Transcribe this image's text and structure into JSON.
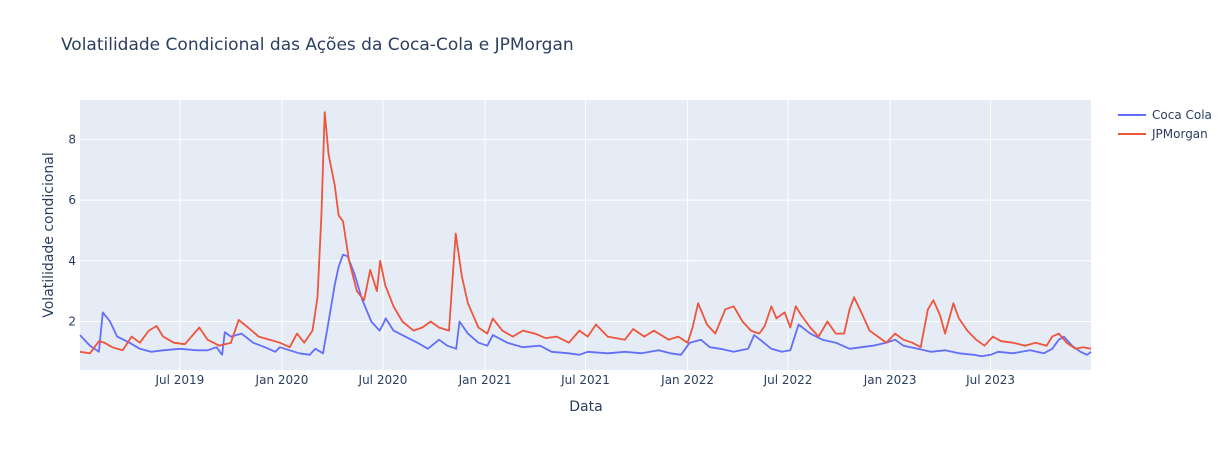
{
  "chart_data": {
    "type": "line",
    "title": "Volatilidade Condicional das Ações da Coca-Cola e JPMorgan",
    "xlabel": "Data",
    "ylabel": "Volatilidade condicional",
    "xlim": [
      "2019-01-02",
      "2023-12-29"
    ],
    "ylim": [
      0.4,
      9.3
    ],
    "x_ticks": [
      {
        "date": "2019-07-01",
        "label": "Jul 2019"
      },
      {
        "date": "2020-01-01",
        "label": "Jan 2020"
      },
      {
        "date": "2020-07-01",
        "label": "Jul 2020"
      },
      {
        "date": "2021-01-01",
        "label": "Jan 2021"
      },
      {
        "date": "2021-07-01",
        "label": "Jul 2021"
      },
      {
        "date": "2022-01-01",
        "label": "Jan 2022"
      },
      {
        "date": "2022-07-01",
        "label": "Jul 2022"
      },
      {
        "date": "2023-01-01",
        "label": "Jan 2023"
      },
      {
        "date": "2023-07-01",
        "label": "Jul 2023"
      }
    ],
    "y_ticks": [
      2,
      4,
      6,
      8
    ],
    "grid": true,
    "legend_position": "top-right",
    "series": [
      {
        "name": "Coca Cola",
        "color": "#636efa",
        "points": [
          [
            "2019-01-02",
            1.55
          ],
          [
            "2019-01-20",
            1.2
          ],
          [
            "2019-02-05",
            1.0
          ],
          [
            "2019-02-12",
            2.3
          ],
          [
            "2019-02-25",
            2.0
          ],
          [
            "2019-03-10",
            1.5
          ],
          [
            "2019-04-01",
            1.3
          ],
          [
            "2019-04-20",
            1.1
          ],
          [
            "2019-05-10",
            1.0
          ],
          [
            "2019-06-01",
            1.05
          ],
          [
            "2019-07-01",
            1.1
          ],
          [
            "2019-08-01",
            1.05
          ],
          [
            "2019-08-20",
            1.05
          ],
          [
            "2019-09-05",
            1.15
          ],
          [
            "2019-09-15",
            0.9
          ],
          [
            "2019-09-20",
            1.65
          ],
          [
            "2019-10-01",
            1.5
          ],
          [
            "2019-10-20",
            1.6
          ],
          [
            "2019-11-10",
            1.3
          ],
          [
            "2019-12-01",
            1.15
          ],
          [
            "2019-12-20",
            1.0
          ],
          [
            "2019-12-28",
            1.15
          ],
          [
            "2020-01-15",
            1.05
          ],
          [
            "2020-02-01",
            0.95
          ],
          [
            "2020-02-20",
            0.9
          ],
          [
            "2020-03-01",
            1.1
          ],
          [
            "2020-03-15",
            0.95
          ],
          [
            "2020-03-25",
            2.0
          ],
          [
            "2020-04-05",
            3.2
          ],
          [
            "2020-04-12",
            3.8
          ],
          [
            "2020-04-20",
            4.2
          ],
          [
            "2020-04-28",
            4.15
          ],
          [
            "2020-05-10",
            3.6
          ],
          [
            "2020-05-25",
            2.7
          ],
          [
            "2020-06-10",
            2.0
          ],
          [
            "2020-06-25",
            1.7
          ],
          [
            "2020-07-01",
            1.9
          ],
          [
            "2020-07-06",
            2.1
          ],
          [
            "2020-07-20",
            1.7
          ],
          [
            "2020-08-10",
            1.5
          ],
          [
            "2020-09-01",
            1.3
          ],
          [
            "2020-09-20",
            1.1
          ],
          [
            "2020-10-10",
            1.4
          ],
          [
            "2020-10-25",
            1.2
          ],
          [
            "2020-11-10",
            1.1
          ],
          [
            "2020-11-16",
            2.0
          ],
          [
            "2020-12-01",
            1.6
          ],
          [
            "2020-12-20",
            1.3
          ],
          [
            "2021-01-05",
            1.2
          ],
          [
            "2021-01-15",
            1.55
          ],
          [
            "2021-02-10",
            1.3
          ],
          [
            "2021-03-10",
            1.15
          ],
          [
            "2021-04-10",
            1.2
          ],
          [
            "2021-05-01",
            1.0
          ],
          [
            "2021-06-01",
            0.95
          ],
          [
            "2021-06-20",
            0.9
          ],
          [
            "2021-07-05",
            1.0
          ],
          [
            "2021-08-10",
            0.95
          ],
          [
            "2021-09-10",
            1.0
          ],
          [
            "2021-10-10",
            0.95
          ],
          [
            "2021-11-10",
            1.05
          ],
          [
            "2021-12-01",
            0.95
          ],
          [
            "2021-12-20",
            0.9
          ],
          [
            "2022-01-05",
            1.3
          ],
          [
            "2022-01-25",
            1.4
          ],
          [
            "2022-02-10",
            1.15
          ],
          [
            "2022-03-01",
            1.1
          ],
          [
            "2022-03-25",
            1.0
          ],
          [
            "2022-04-20",
            1.1
          ],
          [
            "2022-05-01",
            1.55
          ],
          [
            "2022-05-15",
            1.35
          ],
          [
            "2022-06-01",
            1.1
          ],
          [
            "2022-06-20",
            1.0
          ],
          [
            "2022-07-05",
            1.05
          ],
          [
            "2022-07-20",
            1.9
          ],
          [
            "2022-08-10",
            1.6
          ],
          [
            "2022-09-01",
            1.4
          ],
          [
            "2022-09-25",
            1.3
          ],
          [
            "2022-10-20",
            1.1
          ],
          [
            "2022-11-10",
            1.15
          ],
          [
            "2022-12-01",
            1.2
          ],
          [
            "2022-12-25",
            1.3
          ],
          [
            "2023-01-10",
            1.4
          ],
          [
            "2023-01-25",
            1.2
          ],
          [
            "2023-02-20",
            1.1
          ],
          [
            "2023-03-15",
            1.0
          ],
          [
            "2023-04-10",
            1.05
          ],
          [
            "2023-05-05",
            0.95
          ],
          [
            "2023-06-01",
            0.9
          ],
          [
            "2023-06-15",
            0.85
          ],
          [
            "2023-07-01",
            0.9
          ],
          [
            "2023-07-15",
            1.0
          ],
          [
            "2023-08-10",
            0.95
          ],
          [
            "2023-09-10",
            1.05
          ],
          [
            "2023-10-05",
            0.95
          ],
          [
            "2023-10-20",
            1.1
          ],
          [
            "2023-11-01",
            1.4
          ],
          [
            "2023-11-10",
            1.5
          ],
          [
            "2023-11-25",
            1.2
          ],
          [
            "2023-12-10",
            1.0
          ],
          [
            "2023-12-22",
            0.9
          ],
          [
            "2023-12-29",
            1.0
          ]
        ]
      },
      {
        "name": "JPMorgan",
        "color": "#ef553b",
        "points": [
          [
            "2019-01-02",
            1.0
          ],
          [
            "2019-01-20",
            0.95
          ],
          [
            "2019-02-05",
            1.35
          ],
          [
            "2019-02-15",
            1.3
          ],
          [
            "2019-03-01",
            1.15
          ],
          [
            "2019-03-20",
            1.05
          ],
          [
            "2019-04-05",
            1.5
          ],
          [
            "2019-04-20",
            1.3
          ],
          [
            "2019-05-06",
            1.7
          ],
          [
            "2019-05-20",
            1.85
          ],
          [
            "2019-06-01",
            1.5
          ],
          [
            "2019-06-20",
            1.3
          ],
          [
            "2019-07-10",
            1.25
          ],
          [
            "2019-08-05",
            1.8
          ],
          [
            "2019-08-20",
            1.4
          ],
          [
            "2019-09-10",
            1.2
          ],
          [
            "2019-10-01",
            1.3
          ],
          [
            "2019-10-15",
            2.05
          ],
          [
            "2019-11-01",
            1.8
          ],
          [
            "2019-11-20",
            1.5
          ],
          [
            "2019-12-10",
            1.4
          ],
          [
            "2019-12-28",
            1.3
          ],
          [
            "2020-01-15",
            1.15
          ],
          [
            "2020-01-28",
            1.6
          ],
          [
            "2020-02-10",
            1.3
          ],
          [
            "2020-02-25",
            1.7
          ],
          [
            "2020-03-05",
            2.8
          ],
          [
            "2020-03-12",
            5.5
          ],
          [
            "2020-03-18",
            8.9
          ],
          [
            "2020-03-25",
            7.5
          ],
          [
            "2020-04-05",
            6.5
          ],
          [
            "2020-04-12",
            5.5
          ],
          [
            "2020-04-20",
            5.3
          ],
          [
            "2020-05-01",
            4.0
          ],
          [
            "2020-05-15",
            3.0
          ],
          [
            "2020-05-28",
            2.7
          ],
          [
            "2020-06-08",
            3.7
          ],
          [
            "2020-06-20",
            3.0
          ],
          [
            "2020-06-26",
            4.0
          ],
          [
            "2020-07-05",
            3.2
          ],
          [
            "2020-07-20",
            2.5
          ],
          [
            "2020-08-05",
            2.0
          ],
          [
            "2020-08-25",
            1.7
          ],
          [
            "2020-09-10",
            1.8
          ],
          [
            "2020-09-25",
            2.0
          ],
          [
            "2020-10-10",
            1.8
          ],
          [
            "2020-10-28",
            1.7
          ],
          [
            "2020-11-09",
            4.9
          ],
          [
            "2020-11-20",
            3.5
          ],
          [
            "2020-12-01",
            2.6
          ],
          [
            "2020-12-20",
            1.8
          ],
          [
            "2021-01-05",
            1.6
          ],
          [
            "2021-01-15",
            2.1
          ],
          [
            "2021-02-01",
            1.7
          ],
          [
            "2021-02-20",
            1.5
          ],
          [
            "2021-03-10",
            1.7
          ],
          [
            "2021-04-01",
            1.6
          ],
          [
            "2021-04-20",
            1.45
          ],
          [
            "2021-05-10",
            1.5
          ],
          [
            "2021-06-01",
            1.3
          ],
          [
            "2021-06-20",
            1.7
          ],
          [
            "2021-07-05",
            1.5
          ],
          [
            "2021-07-20",
            1.9
          ],
          [
            "2021-08-10",
            1.5
          ],
          [
            "2021-09-10",
            1.4
          ],
          [
            "2021-09-25",
            1.75
          ],
          [
            "2021-10-15",
            1.5
          ],
          [
            "2021-11-01",
            1.7
          ],
          [
            "2021-11-28",
            1.4
          ],
          [
            "2021-12-15",
            1.5
          ],
          [
            "2022-01-01",
            1.3
          ],
          [
            "2022-01-10",
            1.8
          ],
          [
            "2022-01-20",
            2.6
          ],
          [
            "2022-02-05",
            1.9
          ],
          [
            "2022-02-20",
            1.6
          ],
          [
            "2022-03-10",
            2.4
          ],
          [
            "2022-03-25",
            2.5
          ],
          [
            "2022-04-10",
            2.0
          ],
          [
            "2022-04-25",
            1.7
          ],
          [
            "2022-05-10",
            1.6
          ],
          [
            "2022-05-20",
            1.85
          ],
          [
            "2022-06-01",
            2.5
          ],
          [
            "2022-06-10",
            2.1
          ],
          [
            "2022-06-25",
            2.3
          ],
          [
            "2022-07-05",
            1.8
          ],
          [
            "2022-07-15",
            2.5
          ],
          [
            "2022-07-25",
            2.2
          ],
          [
            "2022-08-10",
            1.8
          ],
          [
            "2022-08-25",
            1.5
          ],
          [
            "2022-09-10",
            2.0
          ],
          [
            "2022-09-25",
            1.6
          ],
          [
            "2022-10-10",
            1.6
          ],
          [
            "2022-10-20",
            2.4
          ],
          [
            "2022-10-28",
            2.8
          ],
          [
            "2022-11-10",
            2.3
          ],
          [
            "2022-11-25",
            1.7
          ],
          [
            "2022-12-10",
            1.5
          ],
          [
            "2022-12-25",
            1.3
          ],
          [
            "2023-01-10",
            1.6
          ],
          [
            "2023-01-25",
            1.4
          ],
          [
            "2023-02-10",
            1.3
          ],
          [
            "2023-02-25",
            1.15
          ],
          [
            "2023-03-10",
            2.4
          ],
          [
            "2023-03-20",
            2.7
          ],
          [
            "2023-04-01",
            2.2
          ],
          [
            "2023-04-10",
            1.6
          ],
          [
            "2023-04-25",
            2.6
          ],
          [
            "2023-05-05",
            2.1
          ],
          [
            "2023-05-20",
            1.7
          ],
          [
            "2023-06-05",
            1.4
          ],
          [
            "2023-06-20",
            1.2
          ],
          [
            "2023-07-05",
            1.5
          ],
          [
            "2023-07-20",
            1.35
          ],
          [
            "2023-08-10",
            1.3
          ],
          [
            "2023-09-01",
            1.2
          ],
          [
            "2023-09-20",
            1.3
          ],
          [
            "2023-10-10",
            1.2
          ],
          [
            "2023-10-20",
            1.5
          ],
          [
            "2023-11-01",
            1.6
          ],
          [
            "2023-11-15",
            1.3
          ],
          [
            "2023-12-01",
            1.1
          ],
          [
            "2023-12-15",
            1.15
          ],
          [
            "2023-12-29",
            1.1
          ]
        ]
      }
    ]
  }
}
